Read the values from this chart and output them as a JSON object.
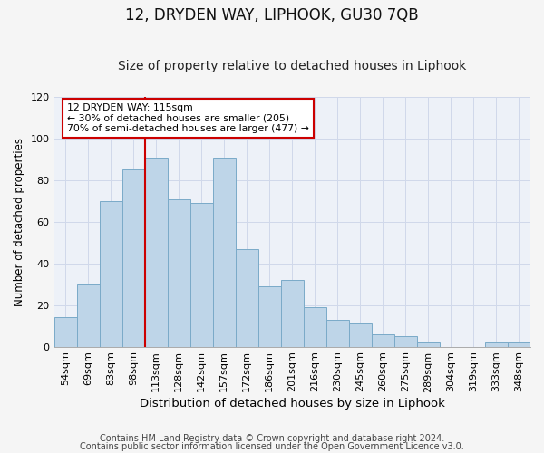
{
  "title": "12, DRYDEN WAY, LIPHOOK, GU30 7QB",
  "subtitle": "Size of property relative to detached houses in Liphook",
  "xlabel": "Distribution of detached houses by size in Liphook",
  "ylabel": "Number of detached properties",
  "categories": [
    "54sqm",
    "69sqm",
    "83sqm",
    "98sqm",
    "113sqm",
    "128sqm",
    "142sqm",
    "157sqm",
    "172sqm",
    "186sqm",
    "201sqm",
    "216sqm",
    "230sqm",
    "245sqm",
    "260sqm",
    "275sqm",
    "289sqm",
    "304sqm",
    "319sqm",
    "333sqm",
    "348sqm"
  ],
  "values": [
    14,
    30,
    70,
    85,
    91,
    71,
    69,
    91,
    47,
    29,
    32,
    19,
    13,
    11,
    6,
    5,
    2,
    0,
    0,
    2,
    2
  ],
  "bar_color": "#bed5e8",
  "bar_edge_color": "#7aaac8",
  "ylim": [
    0,
    120
  ],
  "yticks": [
    0,
    20,
    40,
    60,
    80,
    100,
    120
  ],
  "grid_color": "#d0d8ea",
  "bg_color": "#edf1f8",
  "vline_color": "#cc0000",
  "annotation_text": "12 DRYDEN WAY: 115sqm\n← 30% of detached houses are smaller (205)\n70% of semi-detached houses are larger (477) →",
  "annotation_box_color": "#ffffff",
  "annotation_box_edge": "#cc0000",
  "footer1": "Contains HM Land Registry data © Crown copyright and database right 2024.",
  "footer2": "Contains public sector information licensed under the Open Government Licence v3.0.",
  "title_fontsize": 12,
  "subtitle_fontsize": 10,
  "xlabel_fontsize": 9.5,
  "ylabel_fontsize": 8.5,
  "tick_fontsize": 8,
  "footer_fontsize": 7
}
